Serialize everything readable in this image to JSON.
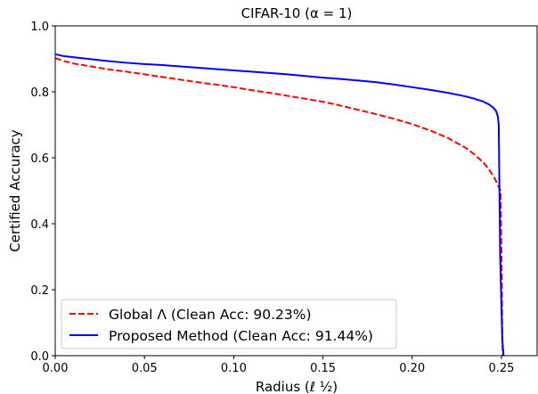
{
  "chart_data": {
    "type": "line",
    "title": "CIFAR-10 (α = 1)",
    "xlabel": "Radius (ℓ ½)",
    "ylabel": "Certified Accuracy",
    "xlim": [
      0,
      0.27
    ],
    "ylim": [
      0,
      1.0
    ],
    "xticks": [
      "0.00",
      "0.05",
      "0.10",
      "0.15",
      "0.20",
      "0.25"
    ],
    "yticks": [
      "0.0",
      "0.2",
      "0.4",
      "0.6",
      "0.8",
      "1.0"
    ],
    "grid": false,
    "legend_position": "bottom-left",
    "series": [
      {
        "name": "Global Λ (Clean Acc: 90.23%)",
        "color": "#ff0000",
        "style": "dashed",
        "x": [
          0,
          0.005,
          0.01,
          0.02,
          0.03,
          0.04,
          0.05,
          0.06,
          0.07,
          0.08,
          0.09,
          0.1,
          0.11,
          0.12,
          0.13,
          0.14,
          0.15,
          0.16,
          0.17,
          0.18,
          0.19,
          0.2,
          0.21,
          0.22,
          0.23,
          0.235,
          0.24,
          0.243,
          0.246,
          0.248,
          0.2495,
          0.2502,
          0.2505,
          0.2508
        ],
        "y": [
          0.902,
          0.893,
          0.886,
          0.877,
          0.868,
          0.861,
          0.853,
          0.845,
          0.837,
          0.829,
          0.822,
          0.814,
          0.805,
          0.797,
          0.788,
          0.779,
          0.77,
          0.758,
          0.745,
          0.732,
          0.718,
          0.702,
          0.683,
          0.66,
          0.63,
          0.61,
          0.585,
          0.565,
          0.54,
          0.518,
          0.5,
          0.25,
          0.05,
          0.0
        ]
      },
      {
        "name": "Proposed Method  (Clean Acc: 91.44%)",
        "color": "#0000ff",
        "style": "solid",
        "x": [
          0,
          0.005,
          0.01,
          0.02,
          0.03,
          0.04,
          0.05,
          0.06,
          0.07,
          0.08,
          0.09,
          0.1,
          0.11,
          0.12,
          0.13,
          0.14,
          0.15,
          0.16,
          0.17,
          0.18,
          0.19,
          0.2,
          0.21,
          0.22,
          0.23,
          0.235,
          0.24,
          0.243,
          0.245,
          0.247,
          0.248,
          0.2485,
          0.2493,
          0.2505,
          0.2512
        ],
        "y": [
          0.914,
          0.908,
          0.905,
          0.899,
          0.893,
          0.888,
          0.884,
          0.881,
          0.877,
          0.873,
          0.869,
          0.865,
          0.861,
          0.857,
          0.853,
          0.848,
          0.843,
          0.839,
          0.834,
          0.829,
          0.822,
          0.814,
          0.806,
          0.797,
          0.786,
          0.779,
          0.77,
          0.762,
          0.754,
          0.742,
          0.725,
          0.7,
          0.3,
          0.05,
          0.0
        ]
      }
    ]
  }
}
